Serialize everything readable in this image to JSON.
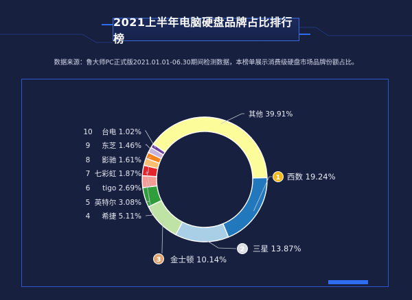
{
  "title": "2021上半年电脑硬盘品牌占比排行榜",
  "source_note": "数据来源：鲁大师PC正式版2021.01.01-06.30期间检测数据，本榜单展示消费级硬盘市场品牌份额占比。",
  "colors": {
    "background": "#17203f",
    "panel_border": "#2c57c8",
    "accent": "#2f6df0",
    "label_text": "#e6e9f2",
    "leader_line": "#c4c9d6"
  },
  "chart_data": {
    "type": "pie",
    "donut": true,
    "slices": [
      {
        "rank": "1",
        "name": "西数",
        "value": 19.24,
        "label": "西数 19.24%",
        "color": "#2178bd",
        "badge_color": "#f2b91b"
      },
      {
        "rank": "2",
        "name": "三星",
        "value": 13.87,
        "label": "三星 13.87%",
        "color": "#a8cfe6",
        "badge_color": "#d9dce3"
      },
      {
        "rank": "3",
        "name": "金士顿",
        "value": 10.14,
        "label": "金士顿 10.14%",
        "color": "#bfe3a4",
        "badge_color": "#e0a46d"
      },
      {
        "rank": "4",
        "name": "希捷",
        "value": 5.11,
        "label": "希捷 5.11%",
        "color": "#2f9e3a"
      },
      {
        "rank": "5",
        "name": "英特尔",
        "value": 3.08,
        "label": "英特尔 3.08%",
        "color": "#f59b93"
      },
      {
        "rank": "6",
        "name": "tigo",
        "value": 2.69,
        "label": "tigo 2.69%",
        "color": "#e3242b"
      },
      {
        "rank": "7",
        "name": "七彩虹",
        "value": 1.87,
        "label": "七彩虹 1.87%",
        "color": "#fbbf6f"
      },
      {
        "rank": "8",
        "name": "影驰",
        "value": 1.61,
        "label": "影驰 1.61%",
        "color": "#f5821f"
      },
      {
        "rank": "9",
        "name": "东芝",
        "value": 1.46,
        "label": "东芝 1.46%",
        "color": "#c9b3dc"
      },
      {
        "rank": "10",
        "name": "台电",
        "value": 1.02,
        "label": "台电 1.02%",
        "color": "#6b3fa0"
      },
      {
        "rank": "",
        "name": "其他",
        "value": 39.91,
        "label": "其他 39.91%",
        "color": "#fcfc9a"
      }
    ]
  }
}
